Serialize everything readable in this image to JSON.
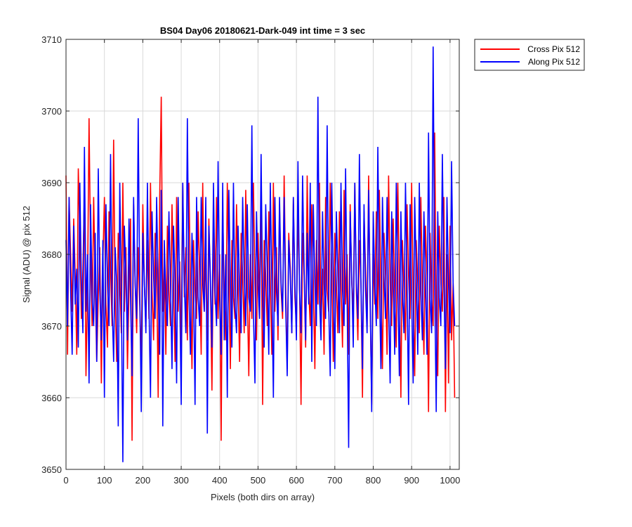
{
  "chart_data": {
    "type": "line",
    "title": "BS04 Day06 20180621-Dark-049 int time = 3 sec",
    "xlabel": "Pixels (both dirs on array)",
    "ylabel": "Signal (ADU) @ pix 512",
    "xlim": [
      0,
      1024
    ],
    "ylim": [
      3650,
      3710
    ],
    "x_ticks": [
      "0",
      "100",
      "200",
      "300",
      "400",
      "500",
      "600",
      "700",
      "800",
      "900",
      "1000"
    ],
    "y_ticks": [
      "3650",
      "3660",
      "3670",
      "3680",
      "3690",
      "3700",
      "3710"
    ],
    "grid": true,
    "legend_position": "outside top-right",
    "x_sample_step": 4,
    "series": [
      {
        "name": "Cross Pix 512",
        "color": "#ff0000",
        "values": [
          3691,
          3666,
          3688,
          3680,
          3672,
          3685,
          3677,
          3666,
          3692,
          3683,
          3671,
          3678,
          3689,
          3663,
          3675,
          3699,
          3680,
          3670,
          3688,
          3676,
          3665,
          3674,
          3681,
          3662,
          3679,
          3688,
          3673,
          3667,
          3686,
          3678,
          3670,
          3696,
          3674,
          3665,
          3683,
          3677,
          3669,
          3690,
          3672,
          3681,
          3664,
          3675,
          3685,
          3654,
          3687,
          3676,
          3669,
          3681,
          3673,
          3665,
          3687,
          3676,
          3670,
          3682,
          3671,
          3690,
          3675,
          3668,
          3683,
          3678,
          3660,
          3688,
          3702,
          3672,
          3679,
          3666,
          3684,
          3675,
          3670,
          3687,
          3676,
          3665,
          3688,
          3672,
          3679,
          3666,
          3690,
          3674,
          3681,
          3668,
          3690,
          3676,
          3664,
          3682,
          3675,
          3671,
          3686,
          3677,
          3666,
          3690,
          3672,
          3680,
          3668,
          3685,
          3676,
          3661,
          3683,
          3673,
          3688,
          3671,
          3680,
          3654,
          3686,
          3675,
          3668,
          3690,
          3678,
          3664,
          3682,
          3674,
          3671,
          3687,
          3676,
          3665,
          3683,
          3677,
          3669,
          3689,
          3675,
          3663,
          3680,
          3671,
          3690,
          3676,
          3668,
          3683,
          3673,
          3688,
          3659,
          3682,
          3677,
          3670,
          3686,
          3676,
          3666,
          3690,
          3672,
          3681,
          3668,
          3687,
          3675,
          3671,
          3691,
          3676,
          3664,
          3683,
          3678,
          3669,
          3688,
          3674,
          3670,
          3686,
          3676,
          3659,
          3683,
          3677,
          3667,
          3691,
          3675,
          3670,
          3687,
          3676,
          3664,
          3682,
          3673,
          3690,
          3670,
          3678,
          3666,
          3688,
          3675,
          3672,
          3690,
          3677,
          3665,
          3683,
          3676,
          3669,
          3686,
          3676,
          3667,
          3689,
          3673,
          3680,
          3666,
          3687,
          3676,
          3672,
          3690,
          3675,
          3668,
          3682,
          3676,
          3660,
          3686,
          3678,
          3670,
          3691,
          3673,
          3659,
          3680,
          3673,
          3686,
          3671,
          3689,
          3675,
          3664,
          3683,
          3677,
          3666,
          3691,
          3676,
          3670,
          3685,
          3674,
          3667,
          3690,
          3676,
          3660,
          3682,
          3675,
          3668,
          3687,
          3677,
          3671,
          3690,
          3674,
          3663,
          3682,
          3676,
          3669,
          3688,
          3675,
          3666,
          3684,
          3677,
          3658,
          3683,
          3674,
          3670,
          3697,
          3672,
          3663,
          3684,
          3676,
          3672,
          3688,
          3658,
          3680,
          3662,
          3684,
          3668,
          3676,
          3660
        ]
      },
      {
        "name": "Along Pix 512",
        "color": "#0000ff",
        "values": [
          3682,
          3670,
          3688,
          3675,
          3666,
          3684,
          3673,
          3678,
          3667,
          3690,
          3676,
          3669,
          3695,
          3672,
          3680,
          3662,
          3687,
          3674,
          3670,
          3683,
          3665,
          3692,
          3675,
          3668,
          3682,
          3660,
          3687,
          3676,
          3670,
          3694,
          3673,
          3665,
          3681,
          3676,
          3656,
          3690,
          3675,
          3651,
          3684,
          3677,
          3668,
          3685,
          3674,
          3663,
          3688,
          3676,
          3671,
          3699,
          3675,
          3658,
          3683,
          3676,
          3669,
          3690,
          3673,
          3660,
          3686,
          3677,
          3671,
          3688,
          3675,
          3666,
          3689,
          3656,
          3682,
          3674,
          3670,
          3686,
          3676,
          3664,
          3684,
          3676,
          3662,
          3688,
          3675,
          3659,
          3690,
          3676,
          3669,
          3699,
          3675,
          3666,
          3683,
          3676,
          3659,
          3688,
          3674,
          3670,
          3688,
          3676,
          3672,
          3688,
          3655,
          3684,
          3677,
          3667,
          3690,
          3675,
          3670,
          3693,
          3674,
          3666,
          3690,
          3668,
          3680,
          3660,
          3689,
          3676,
          3667,
          3690,
          3673,
          3669,
          3684,
          3675,
          3669,
          3688,
          3677,
          3670,
          3687,
          3674,
          3672,
          3698,
          3672,
          3662,
          3686,
          3676,
          3671,
          3694,
          3674,
          3667,
          3687,
          3678,
          3666,
          3690,
          3676,
          3660,
          3688,
          3675,
          3670,
          3688,
          3676,
          3672,
          3688,
          3673,
          3663,
          3682,
          3677,
          3669,
          3688,
          3676,
          3668,
          3693,
          3675,
          3669,
          3691,
          3678,
          3668,
          3683,
          3673,
          3690,
          3665,
          3687,
          3676,
          3670,
          3702,
          3674,
          3668,
          3686,
          3676,
          3671,
          3698,
          3673,
          3663,
          3690,
          3676,
          3664,
          3686,
          3677,
          3669,
          3690,
          3675,
          3670,
          3692,
          3674,
          3653,
          3686,
          3677,
          3667,
          3690,
          3676,
          3671,
          3694,
          3676,
          3664,
          3687,
          3675,
          3669,
          3689,
          3674,
          3658,
          3686,
          3676,
          3670,
          3695,
          3676,
          3664,
          3688,
          3677,
          3671,
          3688,
          3673,
          3662,
          3686,
          3676,
          3666,
          3690,
          3676,
          3663,
          3686,
          3675,
          3669,
          3690,
          3676,
          3659,
          3687,
          3674,
          3662,
          3688,
          3677,
          3666,
          3690,
          3675,
          3668,
          3686,
          3676,
          3666,
          3697,
          3674,
          3669,
          3709,
          3676,
          3658,
          3686,
          3674,
          3670,
          3694,
          3676,
          3664,
          3688,
          3676,
          3669,
          3693,
          3676,
          3670
        ]
      }
    ]
  }
}
